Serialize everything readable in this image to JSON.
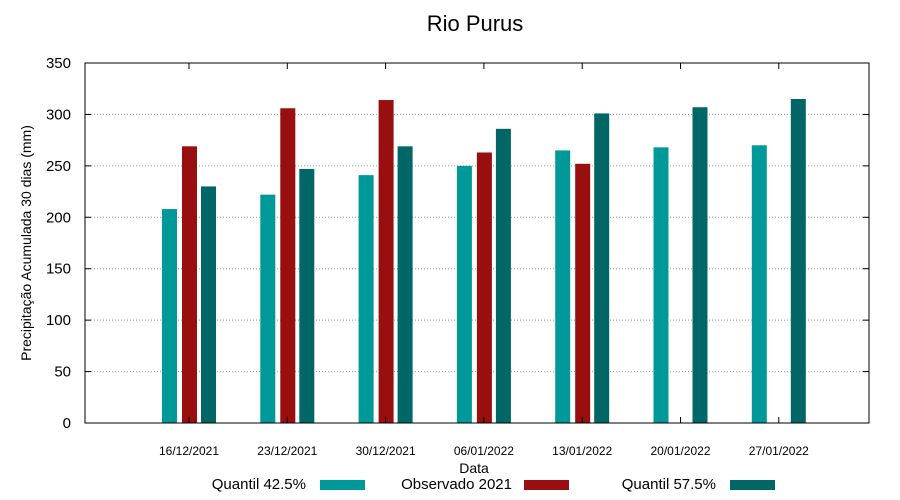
{
  "chart_data": {
    "type": "bar",
    "title": "Rio Purus",
    "xlabel": "Data",
    "ylabel": "Precipitação Acumulada 30 dias (mm)",
    "ylim": [
      0,
      350
    ],
    "yticks": [
      0,
      50,
      100,
      150,
      200,
      250,
      300,
      350
    ],
    "grid": true,
    "legend_position": "bottom",
    "categories": [
      "16/12/2021",
      "23/12/2021",
      "30/12/2021",
      "06/01/2022",
      "13/01/2022",
      "20/01/2022",
      "27/01/2022"
    ],
    "series": [
      {
        "name": "Quantil 42.5%",
        "color": "#009999",
        "values": [
          208,
          222,
          241,
          250,
          265,
          268,
          270
        ]
      },
      {
        "name": "Observado 2021",
        "color": "#990f0f",
        "values": [
          269,
          306,
          314,
          263,
          252,
          null,
          null
        ]
      },
      {
        "name": "Quantil 57.5%",
        "color": "#006666",
        "values": [
          230,
          247,
          269,
          286,
          301,
          307,
          315
        ]
      }
    ]
  }
}
